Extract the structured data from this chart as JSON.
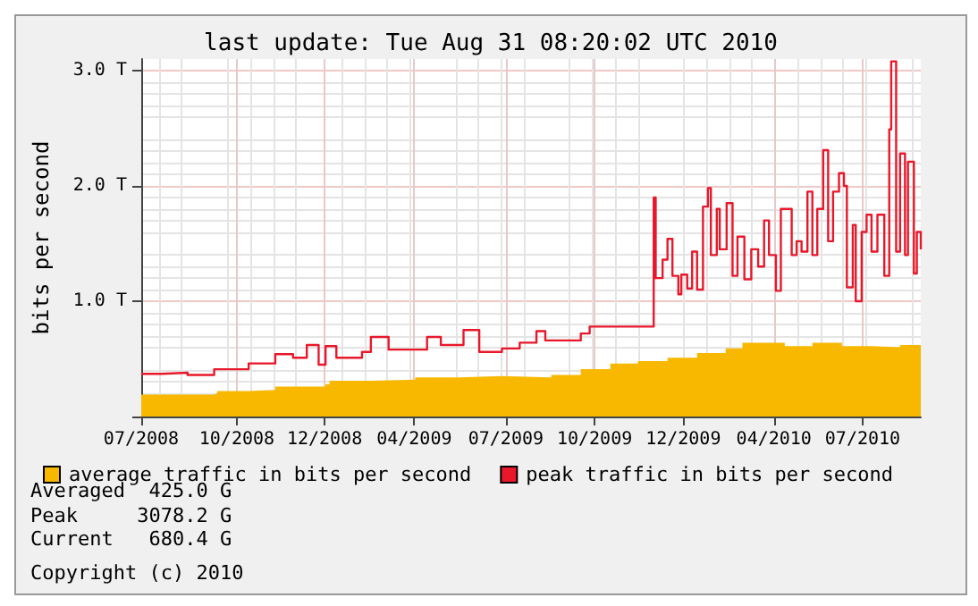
{
  "chart_data": {
    "type": "area",
    "title": "last update: Tue Aug 31 08:20:02 UTC 2010",
    "ylabel": "bits per second",
    "xlim": [
      "2008-06-26",
      "2010-08-26"
    ],
    "xticks": [
      {
        "value": "2008-06-26",
        "label": "07/2008"
      },
      {
        "value": "2008-10-01",
        "label": "10/2008"
      },
      {
        "value": "2008-12-29",
        "label": "12/2008"
      },
      {
        "value": "2009-03-30",
        "label": "04/2009"
      },
      {
        "value": "2009-07-01",
        "label": "07/2009"
      },
      {
        "value": "2009-09-29",
        "label": "10/2009"
      },
      {
        "value": "2009-12-28",
        "label": "12/2009"
      },
      {
        "value": "2010-03-30",
        "label": "04/2010"
      },
      {
        "value": "2010-06-28",
        "label": "07/2010"
      }
    ],
    "ylim": [
      0,
      3.1
    ],
    "yticks": [
      {
        "value": 0,
        "label": null
      },
      {
        "value": 1,
        "label": "1.0 T"
      },
      {
        "value": 2,
        "label": "2.0 T"
      },
      {
        "value": 3,
        "label": "3.0 T"
      }
    ],
    "grid": true,
    "legend": "bottom left",
    "marker": "none",
    "series": [
      {
        "name": "average traffic in bits per second",
        "color": "#f8b800",
        "x": [
          "2008-06-26",
          "2008-09-08",
          "2008-09-11",
          "2008-10-13",
          "2008-11-09",
          "2008-12-30",
          "2009-01-03",
          "2009-02-14",
          "2009-03-31",
          "2009-05-14",
          "2009-06-27",
          "2009-08-16",
          "2009-09-15",
          "2009-10-15",
          "2009-11-12",
          "2009-12-12",
          "2010-01-11",
          "2010-02-09",
          "2010-02-26",
          "2010-04-10",
          "2010-05-08",
          "2010-06-07",
          "2010-07-07",
          "2010-08-05",
          "2010-08-26"
        ],
        "values": [
          0.19,
          0.2,
          0.22,
          0.23,
          0.26,
          0.28,
          0.31,
          0.32,
          0.34,
          0.35,
          0.34,
          0.36,
          0.41,
          0.46,
          0.48,
          0.51,
          0.55,
          0.59,
          0.64,
          0.61,
          0.64,
          0.61,
          0.6,
          0.62,
          0.66
        ]
      },
      {
        "name": "peak traffic in bits per second",
        "type": "step",
        "color": "#e8182a",
        "x": [
          "2008-06-26",
          "2008-07-17",
          "2008-08-12",
          "2008-09-08",
          "2008-10-13",
          "2008-11-09",
          "2008-11-27",
          "2008-12-11",
          "2008-12-23",
          "2008-12-30",
          "2009-01-10",
          "2009-02-05",
          "2009-02-14",
          "2009-03-04",
          "2009-03-31",
          "2009-04-12",
          "2009-04-26",
          "2009-05-19",
          "2009-06-04",
          "2009-06-27",
          "2009-07-15",
          "2009-08-01",
          "2009-08-10",
          "2009-08-28",
          "2009-09-15",
          "2009-09-24",
          "2009-11-26",
          "2009-11-28",
          "2009-11-30",
          "2009-12-07",
          "2009-12-12",
          "2009-12-17",
          "2009-12-23",
          "2009-12-26",
          "2010-01-01",
          "2010-01-06",
          "2010-01-11",
          "2010-01-17",
          "2010-01-22",
          "2010-01-25",
          "2010-01-31",
          "2010-02-03",
          "2010-02-10",
          "2010-02-16",
          "2010-02-21",
          "2010-02-28",
          "2010-03-07",
          "2010-03-14",
          "2010-03-20",
          "2010-03-25",
          "2010-04-01",
          "2010-04-06",
          "2010-04-12",
          "2010-04-17",
          "2010-04-22",
          "2010-04-27",
          "2010-05-03",
          "2010-05-08",
          "2010-05-13",
          "2010-05-19",
          "2010-05-24",
          "2010-05-29",
          "2010-06-04",
          "2010-06-09",
          "2010-06-12",
          "2010-06-18",
          "2010-06-21",
          "2010-06-27",
          "2010-07-02",
          "2010-07-07",
          "2010-07-13",
          "2010-07-20",
          "2010-07-25",
          "2010-07-27",
          "2010-08-01",
          "2010-08-05",
          "2010-08-10",
          "2010-08-13",
          "2010-08-19",
          "2010-08-22",
          "2010-08-26"
        ],
        "values": [
          0.37,
          0.38,
          0.36,
          0.41,
          0.46,
          0.54,
          0.51,
          0.62,
          0.45,
          0.61,
          0.51,
          0.56,
          0.69,
          0.58,
          0.58,
          0.69,
          0.62,
          0.75,
          0.56,
          0.59,
          0.64,
          0.74,
          0.66,
          0.66,
          0.72,
          0.78,
          0.78,
          1.9,
          1.2,
          1.36,
          1.54,
          1.22,
          1.06,
          1.23,
          1.11,
          1.43,
          1.1,
          1.82,
          1.98,
          1.4,
          1.8,
          1.45,
          1.85,
          1.22,
          1.56,
          1.19,
          1.45,
          1.3,
          1.7,
          1.4,
          1.09,
          1.8,
          1.8,
          1.4,
          1.52,
          1.43,
          1.95,
          1.4,
          1.8,
          2.31,
          1.52,
          1.95,
          2.11,
          2.0,
          1.12,
          1.66,
          1.0,
          1.6,
          1.75,
          1.43,
          1.75,
          1.22,
          2.49,
          3.08,
          1.43,
          2.28,
          1.4,
          2.21,
          1.24,
          1.6,
          1.45
        ]
      }
    ],
    "annotations": [
      "Averaged  425.0 G",
      "Peak     3078.2 G",
      "Current   680.4 G",
      "Copyright (c) 2010"
    ]
  }
}
